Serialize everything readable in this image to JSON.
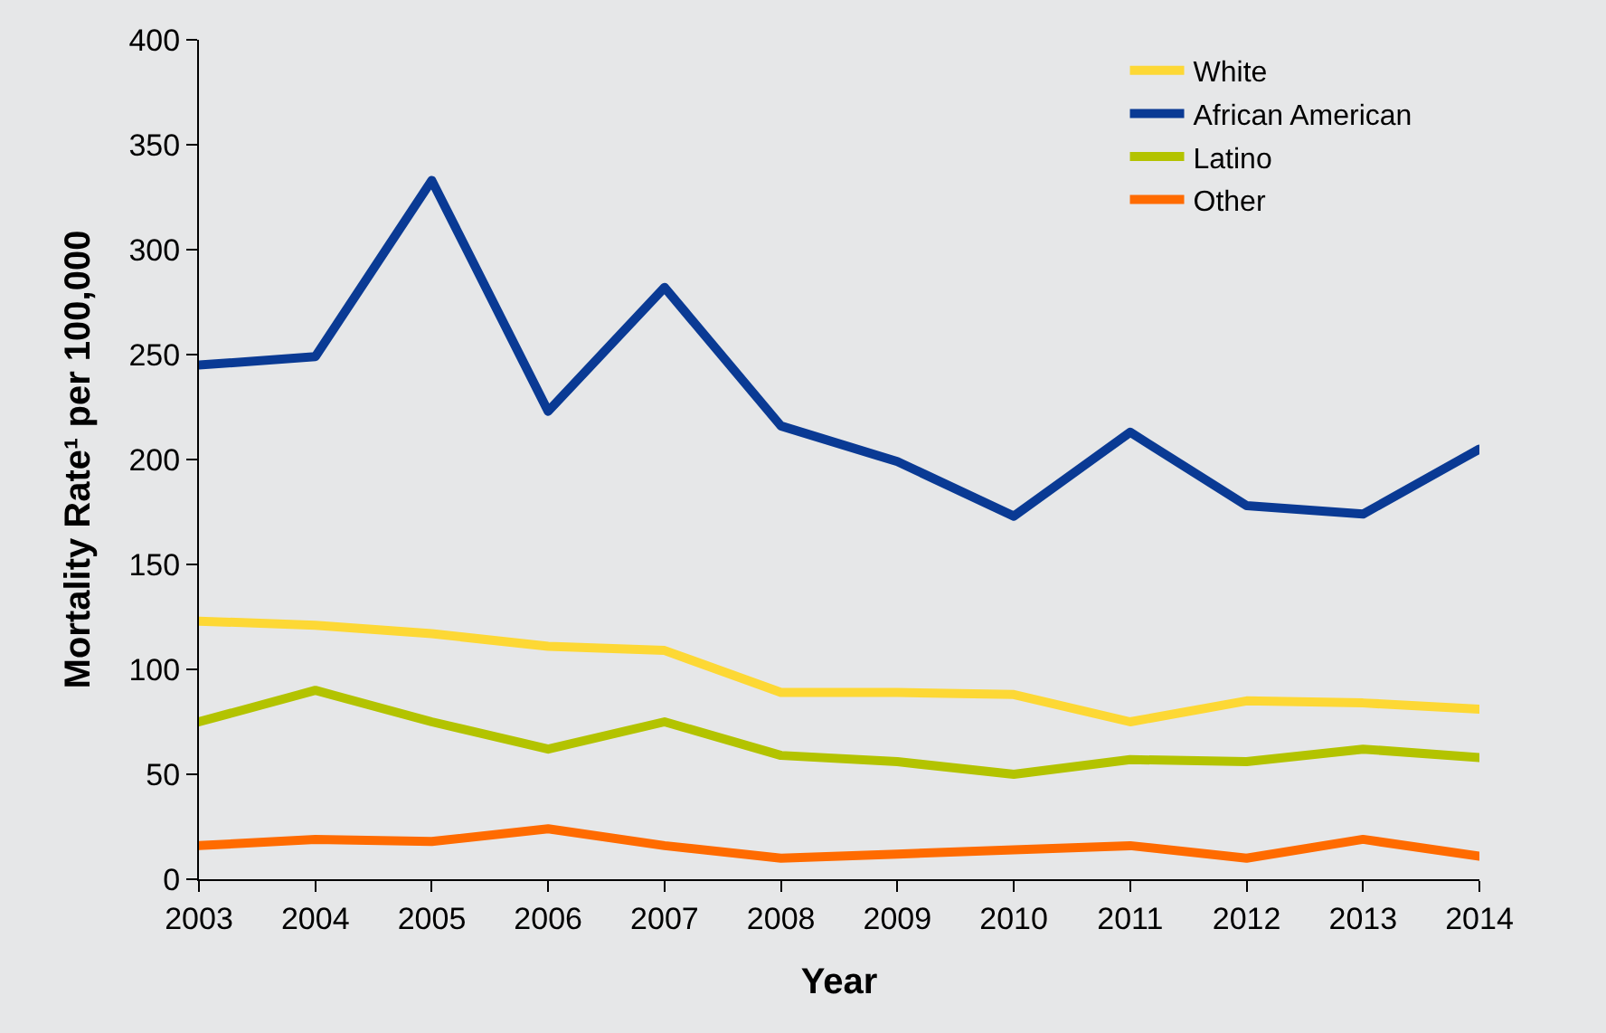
{
  "chart_data": {
    "type": "line",
    "xlabel": "Year",
    "ylabel": "Mortality Rate¹ per 100,000",
    "categories": [
      "2003",
      "2004",
      "2005",
      "2006",
      "2007",
      "2008",
      "2009",
      "2010",
      "2011",
      "2012",
      "2013",
      "2014"
    ],
    "series": [
      {
        "name": "White",
        "color": "#fdd835",
        "values": [
          123,
          121,
          117,
          111,
          109,
          89,
          89,
          88,
          75,
          85,
          84,
          81
        ]
      },
      {
        "name": "African American",
        "color": "#0a3a94",
        "values": [
          245,
          249,
          333,
          223,
          282,
          216,
          199,
          173,
          213,
          178,
          174,
          205
        ]
      },
      {
        "name": "Latino",
        "color": "#b3c300",
        "values": [
          75,
          90,
          75,
          62,
          75,
          59,
          56,
          50,
          57,
          56,
          62,
          58
        ]
      },
      {
        "name": "Other",
        "color": "#ff6b00",
        "values": [
          16,
          19,
          18,
          24,
          16,
          10,
          12,
          14,
          16,
          10,
          19,
          11
        ]
      }
    ],
    "ylim": [
      0,
      400
    ],
    "yticks": [
      0,
      50,
      100,
      150,
      200,
      250,
      300,
      350,
      400
    ],
    "grid": false,
    "legend": "top right",
    "marker": "none",
    "line_style": "solid"
  }
}
